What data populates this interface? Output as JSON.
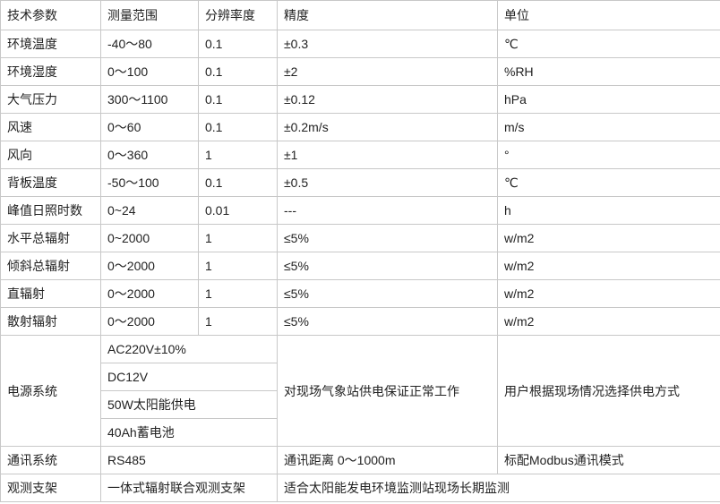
{
  "header": [
    "技术参数",
    "测量范围",
    "分辨率度",
    "精度",
    "单位"
  ],
  "rows": [
    [
      "环境温度",
      "-40～80",
      "0.1",
      "±0.3",
      "℃"
    ],
    [
      "环境湿度",
      "0～100",
      "0.1",
      "±2",
      "%RH"
    ],
    [
      "大气压力",
      "300～1100",
      "0.1",
      "±0.12",
      "hPa"
    ],
    [
      "风速",
      "0～60",
      "0.1",
      "±0.2m/s",
      "m/s"
    ],
    [
      "风向",
      "0～360",
      "1",
      "±1",
      "°"
    ],
    [
      "背板温度",
      "-50～100",
      "0.1",
      "±0.5",
      "℃"
    ],
    [
      "峰值日照时数",
      "0~24",
      "0.01",
      "---",
      "h"
    ],
    [
      "水平总辐射",
      "0~2000",
      "1",
      "≤5%",
      "w/m2"
    ],
    [
      "倾斜总辐射",
      "0～2000",
      "1",
      "≤5%",
      "w/m2"
    ],
    [
      "直辐射",
      "0～2000",
      "1",
      "≤5%",
      "w/m2"
    ],
    [
      "散射辐射",
      "0～2000",
      "1",
      "≤5%",
      "w/m2"
    ]
  ],
  "power": {
    "label": "电源系统",
    "options": [
      "AC220V±10%",
      "DC12V",
      "50W太阳能供电",
      "40Ah蓄电池"
    ],
    "purpose": "对现场气象站供电保证正常工作",
    "note": "用户根据现场情况选择供电方式"
  },
  "comm": {
    "label": "通讯系统",
    "value": "RS485",
    "distance": "通讯距离 0～1000m",
    "mode": "标配Modbus通讯模式"
  },
  "bracket": {
    "label": "观测支架",
    "value": "一体式辐射联合观测支架",
    "use": "适合太阳能发电环境监测站现场长期监测"
  }
}
